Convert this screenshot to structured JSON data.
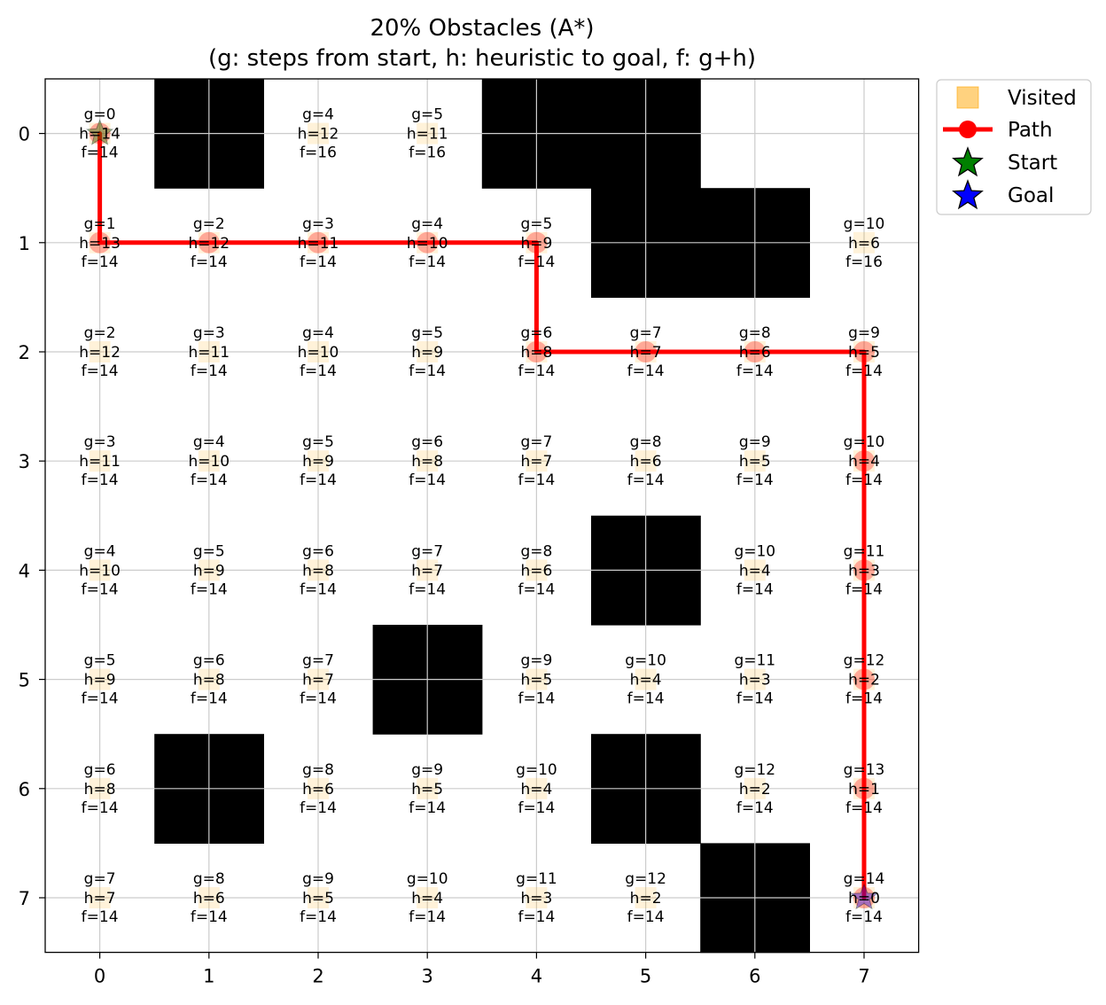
{
  "chart_data": {
    "type": "grid",
    "title": "20% Obstacles (A*)",
    "subtitle": "(g: steps from start, h: heuristic to goal, f: g+h)",
    "rows": 8,
    "cols": 8,
    "x_ticks": [
      "0",
      "1",
      "2",
      "3",
      "4",
      "5",
      "6",
      "7"
    ],
    "y_ticks": [
      "0",
      "1",
      "2",
      "3",
      "4",
      "5",
      "6",
      "7"
    ],
    "grid": true,
    "obstacles": [
      [
        0,
        1
      ],
      [
        0,
        4
      ],
      [
        0,
        5
      ],
      [
        1,
        5
      ],
      [
        1,
        6
      ],
      [
        4,
        5
      ],
      [
        5,
        3
      ],
      [
        6,
        1
      ],
      [
        6,
        5
      ],
      [
        7,
        6
      ]
    ],
    "cells": [
      {
        "row": 0,
        "col": 0,
        "g": "g=0",
        "h": "h=14",
        "f": "f=14"
      },
      {
        "row": 0,
        "col": 2,
        "g": "g=4",
        "h": "h=12",
        "f": "f=16"
      },
      {
        "row": 0,
        "col": 3,
        "g": "g=5",
        "h": "h=11",
        "f": "f=16"
      },
      {
        "row": 1,
        "col": 0,
        "g": "g=1",
        "h": "h=13",
        "f": "f=14"
      },
      {
        "row": 1,
        "col": 1,
        "g": "g=2",
        "h": "h=12",
        "f": "f=14"
      },
      {
        "row": 1,
        "col": 2,
        "g": "g=3",
        "h": "h=11",
        "f": "f=14"
      },
      {
        "row": 1,
        "col": 3,
        "g": "g=4",
        "h": "h=10",
        "f": "f=14"
      },
      {
        "row": 1,
        "col": 4,
        "g": "g=5",
        "h": "h=9",
        "f": "f=14"
      },
      {
        "row": 1,
        "col": 7,
        "g": "g=10",
        "h": "h=6",
        "f": "f=16"
      },
      {
        "row": 2,
        "col": 0,
        "g": "g=2",
        "h": "h=12",
        "f": "f=14"
      },
      {
        "row": 2,
        "col": 1,
        "g": "g=3",
        "h": "h=11",
        "f": "f=14"
      },
      {
        "row": 2,
        "col": 2,
        "g": "g=4",
        "h": "h=10",
        "f": "f=14"
      },
      {
        "row": 2,
        "col": 3,
        "g": "g=5",
        "h": "h=9",
        "f": "f=14"
      },
      {
        "row": 2,
        "col": 4,
        "g": "g=6",
        "h": "h=8",
        "f": "f=14"
      },
      {
        "row": 2,
        "col": 5,
        "g": "g=7",
        "h": "h=7",
        "f": "f=14"
      },
      {
        "row": 2,
        "col": 6,
        "g": "g=8",
        "h": "h=6",
        "f": "f=14"
      },
      {
        "row": 2,
        "col": 7,
        "g": "g=9",
        "h": "h=5",
        "f": "f=14"
      },
      {
        "row": 3,
        "col": 0,
        "g": "g=3",
        "h": "h=11",
        "f": "f=14"
      },
      {
        "row": 3,
        "col": 1,
        "g": "g=4",
        "h": "h=10",
        "f": "f=14"
      },
      {
        "row": 3,
        "col": 2,
        "g": "g=5",
        "h": "h=9",
        "f": "f=14"
      },
      {
        "row": 3,
        "col": 3,
        "g": "g=6",
        "h": "h=8",
        "f": "f=14"
      },
      {
        "row": 3,
        "col": 4,
        "g": "g=7",
        "h": "h=7",
        "f": "f=14"
      },
      {
        "row": 3,
        "col": 5,
        "g": "g=8",
        "h": "h=6",
        "f": "f=14"
      },
      {
        "row": 3,
        "col": 6,
        "g": "g=9",
        "h": "h=5",
        "f": "f=14"
      },
      {
        "row": 3,
        "col": 7,
        "g": "g=10",
        "h": "h=4",
        "f": "f=14"
      },
      {
        "row": 4,
        "col": 0,
        "g": "g=4",
        "h": "h=10",
        "f": "f=14"
      },
      {
        "row": 4,
        "col": 1,
        "g": "g=5",
        "h": "h=9",
        "f": "f=14"
      },
      {
        "row": 4,
        "col": 2,
        "g": "g=6",
        "h": "h=8",
        "f": "f=14"
      },
      {
        "row": 4,
        "col": 3,
        "g": "g=7",
        "h": "h=7",
        "f": "f=14"
      },
      {
        "row": 4,
        "col": 4,
        "g": "g=8",
        "h": "h=6",
        "f": "f=14"
      },
      {
        "row": 4,
        "col": 6,
        "g": "g=10",
        "h": "h=4",
        "f": "f=14"
      },
      {
        "row": 4,
        "col": 7,
        "g": "g=11",
        "h": "h=3",
        "f": "f=14"
      },
      {
        "row": 5,
        "col": 0,
        "g": "g=5",
        "h": "h=9",
        "f": "f=14"
      },
      {
        "row": 5,
        "col": 1,
        "g": "g=6",
        "h": "h=8",
        "f": "f=14"
      },
      {
        "row": 5,
        "col": 2,
        "g": "g=7",
        "h": "h=7",
        "f": "f=14"
      },
      {
        "row": 5,
        "col": 4,
        "g": "g=9",
        "h": "h=5",
        "f": "f=14"
      },
      {
        "row": 5,
        "col": 5,
        "g": "g=10",
        "h": "h=4",
        "f": "f=14"
      },
      {
        "row": 5,
        "col": 6,
        "g": "g=11",
        "h": "h=3",
        "f": "f=14"
      },
      {
        "row": 5,
        "col": 7,
        "g": "g=12",
        "h": "h=2",
        "f": "f=14"
      },
      {
        "row": 6,
        "col": 0,
        "g": "g=6",
        "h": "h=8",
        "f": "f=14"
      },
      {
        "row": 6,
        "col": 2,
        "g": "g=8",
        "h": "h=6",
        "f": "f=14"
      },
      {
        "row": 6,
        "col": 3,
        "g": "g=9",
        "h": "h=5",
        "f": "f=14"
      },
      {
        "row": 6,
        "col": 4,
        "g": "g=10",
        "h": "h=4",
        "f": "f=14"
      },
      {
        "row": 6,
        "col": 6,
        "g": "g=12",
        "h": "h=2",
        "f": "f=14"
      },
      {
        "row": 6,
        "col": 7,
        "g": "g=13",
        "h": "h=1",
        "f": "f=14"
      },
      {
        "row": 7,
        "col": 0,
        "g": "g=7",
        "h": "h=7",
        "f": "f=14"
      },
      {
        "row": 7,
        "col": 1,
        "g": "g=8",
        "h": "h=6",
        "f": "f=14"
      },
      {
        "row": 7,
        "col": 2,
        "g": "g=9",
        "h": "h=5",
        "f": "f=14"
      },
      {
        "row": 7,
        "col": 3,
        "g": "g=10",
        "h": "h=4",
        "f": "f=14"
      },
      {
        "row": 7,
        "col": 4,
        "g": "g=11",
        "h": "h=3",
        "f": "f=14"
      },
      {
        "row": 7,
        "col": 5,
        "g": "g=12",
        "h": "h=2",
        "f": "f=14"
      },
      {
        "row": 7,
        "col": 7,
        "g": "g=14",
        "h": "h=0",
        "f": "f=14"
      }
    ],
    "path": [
      [
        0,
        0
      ],
      [
        1,
        0
      ],
      [
        1,
        1
      ],
      [
        1,
        2
      ],
      [
        1,
        3
      ],
      [
        1,
        4
      ],
      [
        2,
        4
      ],
      [
        2,
        5
      ],
      [
        2,
        6
      ],
      [
        2,
        7
      ],
      [
        3,
        7
      ],
      [
        4,
        7
      ],
      [
        5,
        7
      ],
      [
        6,
        7
      ],
      [
        7,
        7
      ]
    ],
    "start": [
      0,
      0
    ],
    "goal": [
      7,
      7
    ],
    "legend": {
      "placement": "outside-top-right",
      "items": [
        {
          "key": "visited",
          "label": "Visited"
        },
        {
          "key": "path",
          "label": "Path"
        },
        {
          "key": "start",
          "label": "Start"
        },
        {
          "key": "goal",
          "label": "Goal"
        }
      ]
    },
    "colors": {
      "obstacle": "#000000",
      "visited": "#ffa500",
      "path": "#ff0000",
      "start": "#008000",
      "goal": "#0000ff",
      "grid": "#cccccc"
    }
  }
}
